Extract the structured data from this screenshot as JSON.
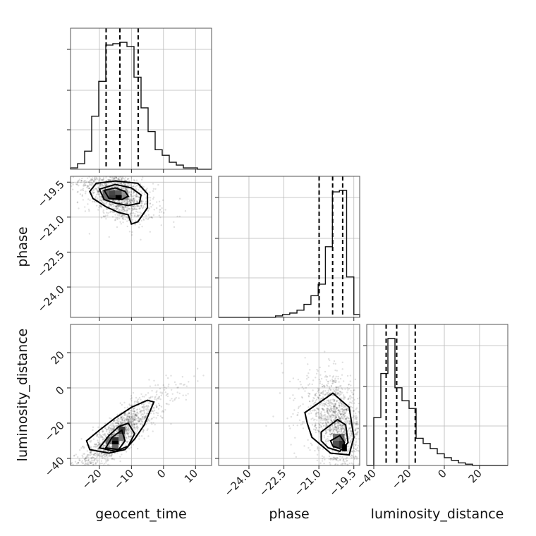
{
  "chart_data": {
    "type": "corner",
    "parameters": [
      "geocent_time",
      "phase",
      "luminosity_distance"
    ],
    "axes": {
      "geocent_time": {
        "label": "geocent_time",
        "range": [
          -29,
          15
        ],
        "ticks": [
          -20,
          -10,
          0,
          10
        ],
        "tick_labels": [
          "−20",
          "−10",
          "0",
          "10"
        ]
      },
      "phase": {
        "label": "phase",
        "range": [
          -25.3,
          -19.25
        ],
        "ticks": [
          -24.0,
          -22.5,
          -21.0,
          -19.5
        ],
        "tick_labels": [
          "−24.0",
          "−22.5",
          "−21.0",
          "−19.5"
        ]
      },
      "luminosity_distance": {
        "label": "luminosity_distance",
        "range": [
          -44,
          36
        ],
        "ticks": [
          -40,
          -20,
          0,
          20
        ],
        "tick_labels": [
          "−40",
          "−20",
          "0",
          "20"
        ]
      }
    },
    "histograms": {
      "geocent_time": {
        "bins": [
          -29,
          -26.8,
          -24.6,
          -22.4,
          -20.2,
          -18,
          -15.8,
          -13.6,
          -11.4,
          -9.2,
          -7,
          -4.8,
          -2.6,
          -0.4,
          1.8,
          4,
          6.2,
          8.4,
          10.6,
          12.8,
          15
        ],
        "counts": [
          0.01,
          0.04,
          0.13,
          0.38,
          0.63,
          0.89,
          0.9,
          0.91,
          0.88,
          0.66,
          0.44,
          0.27,
          0.14,
          0.1,
          0.05,
          0.03,
          0.01,
          0.01,
          0.0,
          0.0
        ],
        "quantiles": [
          -17.9,
          -13.6,
          -7.9
        ]
      },
      "phase": {
        "bins": [
          -25.3,
          -24.99,
          -24.69,
          -24.38,
          -24.08,
          -23.78,
          -23.47,
          -23.16,
          -22.86,
          -22.56,
          -22.25,
          -21.94,
          -21.64,
          -21.34,
          -21.03,
          -20.72,
          -20.42,
          -20.12,
          -19.81,
          -19.5,
          -19.25
        ],
        "counts": [
          0.0,
          0.0,
          0.0,
          0.0,
          0.0,
          0.0,
          0.0,
          0.0,
          0.01,
          0.02,
          0.03,
          0.05,
          0.09,
          0.15,
          0.23,
          0.49,
          0.87,
          0.88,
          0.28,
          0.02
        ],
        "quantiles": [
          -20.99,
          -20.41,
          -19.98
        ]
      },
      "luminosity_distance": {
        "bins": [
          -44,
          -40,
          -36,
          -32,
          -28,
          -24,
          -20,
          -16,
          -12,
          -8,
          -4,
          0,
          4,
          8,
          12,
          16,
          20,
          24,
          28,
          32,
          36
        ],
        "counts": [
          0.0,
          0.37,
          0.71,
          0.98,
          0.6,
          0.5,
          0.44,
          0.21,
          0.17,
          0.13,
          0.09,
          0.06,
          0.04,
          0.02,
          0.01,
          0.0,
          0.0,
          0.0,
          0.0,
          0.0
        ],
        "quantiles": [
          -33,
          -27,
          -16.5
        ]
      }
    },
    "pairs": [
      {
        "x": "geocent_time",
        "y": "phase",
        "center": [
          -14.5,
          -20.0
        ],
        "spread": [
          4.5,
          0.6
        ],
        "correlation": -0.5,
        "contours": [
          [
            [
              -23,
              -19.9
            ],
            [
              -21,
              -19.55
            ],
            [
              -15,
              -19.45
            ],
            [
              -8,
              -19.55
            ],
            [
              -5,
              -20.0
            ],
            [
              -5,
              -20.6
            ],
            [
              -8,
              -21.2
            ],
            [
              -10,
              -21.3
            ],
            [
              -11,
              -20.9
            ],
            [
              -14,
              -20.8
            ],
            [
              -18,
              -20.55
            ],
            [
              -22,
              -20.2
            ]
          ],
          [
            [
              -20,
              -19.8
            ],
            [
              -15,
              -19.6
            ],
            [
              -10,
              -19.75
            ],
            [
              -7,
              -20.05
            ],
            [
              -7.5,
              -20.4
            ],
            [
              -11,
              -20.5
            ],
            [
              -15,
              -20.4
            ],
            [
              -18.5,
              -20.25
            ]
          ],
          [
            [
              -18.5,
              -19.85
            ],
            [
              -15,
              -19.75
            ],
            [
              -12,
              -19.9
            ],
            [
              -11,
              -20.1
            ],
            [
              -13,
              -20.25
            ],
            [
              -17,
              -20.2
            ]
          ]
        ],
        "density_cells": [
          {
            "x": [
              -19,
              -17
            ],
            "y": [
              -19.85,
              -20.05
            ],
            "level": 0.55
          },
          {
            "x": [
              -17,
              -15
            ],
            "y": [
              -19.85,
              -20.05
            ],
            "level": 0.7
          },
          {
            "x": [
              -15,
              -13
            ],
            "y": [
              -19.85,
              -20.05
            ],
            "level": 0.6
          },
          {
            "x": [
              -13,
              -11
            ],
            "y": [
              -19.85,
              -20.05
            ],
            "level": 0.35
          },
          {
            "x": [
              -19,
              -17
            ],
            "y": [
              -20.05,
              -20.25
            ],
            "level": 0.5
          },
          {
            "x": [
              -17,
              -15
            ],
            "y": [
              -20.05,
              -20.25
            ],
            "level": 0.75
          },
          {
            "x": [
              -15,
              -13
            ],
            "y": [
              -20.05,
              -20.25
            ],
            "level": 1.0
          },
          {
            "x": [
              -13,
              -11
            ],
            "y": [
              -20.05,
              -20.25
            ],
            "level": 0.4
          }
        ]
      },
      {
        "x": "geocent_time",
        "y": "luminosity_distance",
        "center": [
          -14.0,
          -26.0
        ],
        "spread": [
          6.0,
          12.0
        ],
        "correlation": 0.88,
        "contours": [
          [
            [
              -24,
              -30
            ],
            [
              -23,
              -35
            ],
            [
              -17,
              -37
            ],
            [
              -12,
              -35
            ],
            [
              -9,
              -29
            ],
            [
              -6,
              -21
            ],
            [
              -3,
              -8
            ],
            [
              -5,
              -7
            ],
            [
              -10,
              -11
            ],
            [
              -15,
              -17
            ],
            [
              -20,
              -24
            ]
          ],
          [
            [
              -20,
              -34
            ],
            [
              -15,
              -36
            ],
            [
              -11,
              -33
            ],
            [
              -9,
              -26
            ],
            [
              -11,
              -20
            ],
            [
              -14,
              -22
            ],
            [
              -17,
              -27
            ]
          ],
          [
            [
              -18,
              -34
            ],
            [
              -14,
              -35
            ],
            [
              -12,
              -30
            ],
            [
              -13,
              -24
            ],
            [
              -16,
              -28
            ]
          ]
        ],
        "density_cells": [
          {
            "x": [
              -18,
              -16
            ],
            "y": [
              -28,
              -32
            ],
            "level": 0.5
          },
          {
            "x": [
              -16,
              -14
            ],
            "y": [
              -28,
              -32
            ],
            "level": 0.8
          },
          {
            "x": [
              -16,
              -14
            ],
            "y": [
              -32,
              -36
            ],
            "level": 0.55
          },
          {
            "x": [
              -14,
              -12
            ],
            "y": [
              -22,
              -26
            ],
            "level": 0.75
          },
          {
            "x": [
              -14,
              -12
            ],
            "y": [
              -26,
              -30
            ],
            "level": 0.45
          },
          {
            "x": [
              -16,
              -14
            ],
            "y": [
              -30,
              -32
            ],
            "level": 1.0
          }
        ]
      },
      {
        "x": "phase",
        "y": "luminosity_distance",
        "center": [
          -20.2,
          -20.0
        ],
        "spread": [
          0.55,
          13.0
        ],
        "correlation": -0.35,
        "contours": [
          [
            [
              -21.6,
              -14
            ],
            [
              -20.4,
              -3
            ],
            [
              -19.7,
              -11
            ],
            [
              -19.5,
              -28
            ],
            [
              -19.7,
              -38
            ],
            [
              -20.5,
              -37
            ],
            [
              -21.3,
              -28
            ],
            [
              -21.5,
              -20
            ]
          ],
          [
            [
              -20.9,
              -25
            ],
            [
              -20.2,
              -18
            ],
            [
              -19.85,
              -21
            ],
            [
              -19.75,
              -31
            ],
            [
              -20.1,
              -36
            ],
            [
              -20.6,
              -34
            ],
            [
              -20.9,
              -30
            ]
          ],
          [
            [
              -20.5,
              -30
            ],
            [
              -20.1,
              -27
            ],
            [
              -19.9,
              -31
            ],
            [
              -20.0,
              -35
            ],
            [
              -20.4,
              -33
            ]
          ]
        ],
        "density_cells": [
          {
            "x": [
              -20.4,
              -20.15
            ],
            "y": [
              -26,
              -30
            ],
            "level": 0.5
          },
          {
            "x": [
              -20.15,
              -19.9
            ],
            "y": [
              -26,
              -30
            ],
            "level": 0.55
          },
          {
            "x": [
              -20.4,
              -20.15
            ],
            "y": [
              -30,
              -34
            ],
            "level": 0.65
          },
          {
            "x": [
              -20.15,
              -19.9
            ],
            "y": [
              -30,
              -34
            ],
            "level": 0.8
          },
          {
            "x": [
              -20.0,
              -19.8
            ],
            "y": [
              -32,
              -36
            ],
            "level": 1.0
          }
        ]
      }
    ],
    "grid": true
  }
}
